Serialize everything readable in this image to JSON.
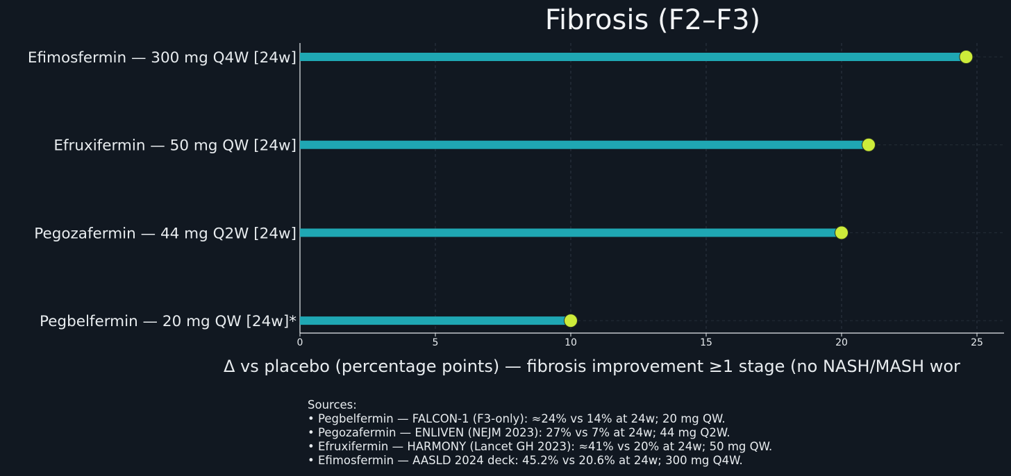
{
  "chart_data": {
    "type": "bar",
    "orientation": "horizontal",
    "style": "lollipop",
    "title": "Fibrosis (F2–F3)",
    "xlabel": "Δ vs placebo (percentage points) — fibrosis improvement ≥1 stage (no NASH/MASH wor",
    "ylabel": "",
    "xlim": [
      0,
      26
    ],
    "x_ticks": [
      0,
      5,
      10,
      15,
      20,
      25
    ],
    "grid": true,
    "categories": [
      "Efimosfermin — 300 mg Q4W [24w]",
      "Efruxifermin — 50 mg QW [24w]",
      "Pegozafermin — 44 mg Q2W [24w]",
      "Pegbelfermin — 20 mg QW [24w]*"
    ],
    "values": [
      24.6,
      21.0,
      20.0,
      10.0
    ],
    "colors": {
      "bar": "#1fa7b3",
      "marker": "#cdec3a",
      "background": "#111821",
      "axis": "#e8ecef",
      "grid": "#3a4450"
    }
  },
  "sources": {
    "heading": "Sources:",
    "lines": [
      "• Pegbelfermin — FALCON-1 (F3-only): ≈24% vs 14% at 24w; 20 mg QW.",
      "• Pegozafermin — ENLIVEN (NEJM 2023): 27% vs 7% at 24w; 44 mg Q2W.",
      "• Efruxifermin — HARMONY (Lancet GH 2023): ≈41% vs 20% at 24w; 50 mg QW.",
      "• Efimosfermin — AASLD 2024 deck: 45.2% vs 20.6% at 24w; 300 mg Q4W."
    ]
  }
}
